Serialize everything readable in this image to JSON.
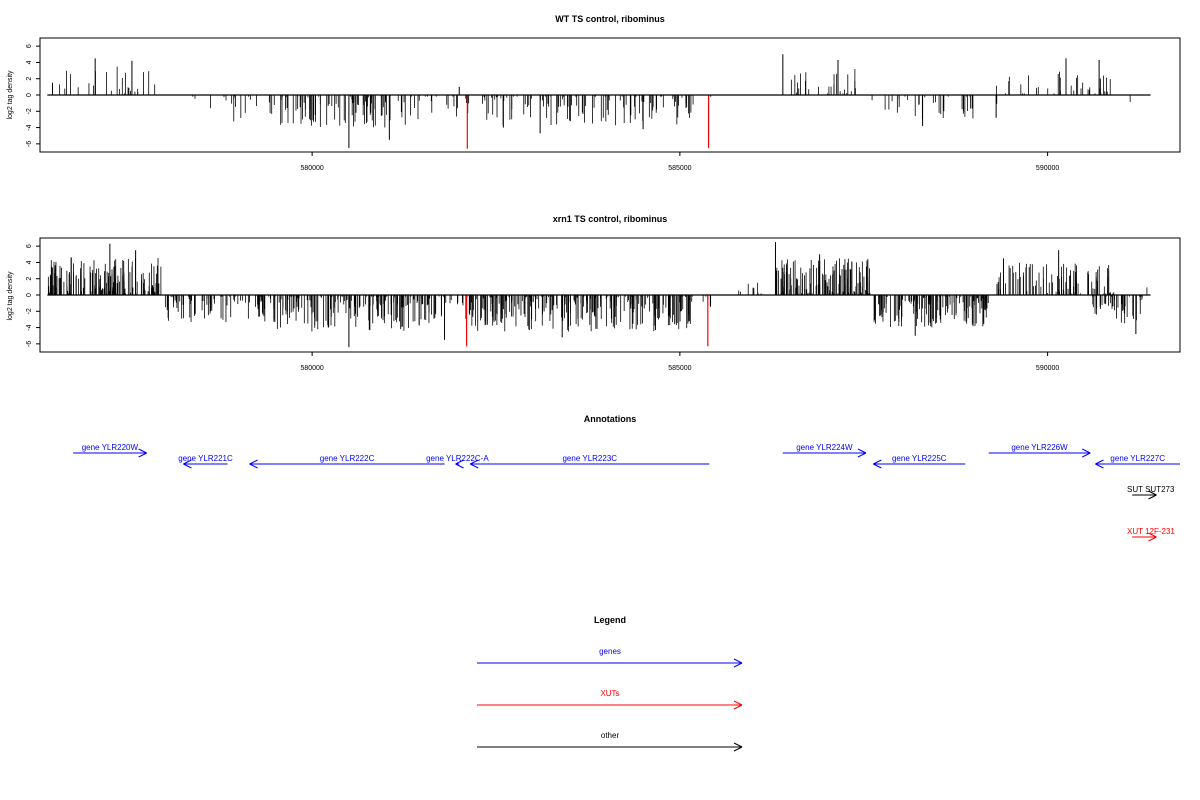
{
  "colors": {
    "gene": "#0000ff",
    "xut": "#ff0000",
    "other": "#000000",
    "bar": "#000000",
    "highlight": "#ff0000"
  },
  "chart_data": [
    {
      "type": "bar",
      "title": "WT TS control, ribominus",
      "ylabel": "log2 tag density",
      "xlim": [
        576300,
        591800
      ],
      "ylim": [
        -7,
        7
      ],
      "yticks": [
        -6,
        -4,
        -2,
        0,
        2,
        4,
        6
      ],
      "xticks": [
        {
          "value": 580000,
          "label": "580000"
        },
        {
          "value": 585000,
          "label": "585000"
        },
        {
          "value": 590000,
          "label": "590000"
        }
      ],
      "segments": [
        {
          "start": 576400,
          "end": 577900,
          "sign": 1,
          "max": 3.5,
          "density": 0.1
        },
        {
          "start": 578200,
          "end": 578500,
          "sign": -1,
          "max": 1.5,
          "density": 0.05
        },
        {
          "start": 578600,
          "end": 579400,
          "sign": -1,
          "max": 3.5,
          "density": 0.1
        },
        {
          "start": 579400,
          "end": 581400,
          "sign": -1,
          "max": 4.0,
          "density": 0.28
        },
        {
          "start": 581400,
          "end": 582300,
          "sign": -1,
          "max": 3.0,
          "density": 0.12
        },
        {
          "start": 582300,
          "end": 585200,
          "sign": -1,
          "max": 3.8,
          "density": 0.24
        },
        {
          "start": 585300,
          "end": 585500,
          "sign": -1,
          "max": 2.0,
          "density": 0.04
        },
        {
          "start": 586400,
          "end": 587500,
          "sign": 1,
          "max": 3.2,
          "density": 0.14
        },
        {
          "start": 587600,
          "end": 589000,
          "sign": -1,
          "max": 3.0,
          "density": 0.14
        },
        {
          "start": 589300,
          "end": 589400,
          "sign": -1,
          "max": 2.5,
          "density": 0.02
        },
        {
          "start": 589300,
          "end": 590900,
          "sign": 1,
          "max": 3.0,
          "density": 0.14
        },
        {
          "start": 591100,
          "end": 591300,
          "sign": -1,
          "max": 2.0,
          "density": 0.03
        }
      ],
      "peaks": [
        {
          "x": 576470,
          "y": 1.5
        },
        {
          "x": 577050,
          "y": 4.5
        },
        {
          "x": 577550,
          "y": 4.2
        },
        {
          "x": 580500,
          "y": -6.5
        },
        {
          "x": 581050,
          "y": -5.5
        },
        {
          "x": 582000,
          "y": 1.0
        },
        {
          "x": 582600,
          "y": -4.0
        },
        {
          "x": 583100,
          "y": -4.7
        },
        {
          "x": 584500,
          "y": -4.2
        },
        {
          "x": 586400,
          "y": 5.0
        },
        {
          "x": 587150,
          "y": 4.3
        },
        {
          "x": 588300,
          "y": -3.8
        },
        {
          "x": 589300,
          "y": -2.8
        },
        {
          "x": 590250,
          "y": 4.5
        },
        {
          "x": 590700,
          "y": 4.3
        }
      ],
      "highlights": [
        {
          "x": 582110,
          "y": -6.6
        },
        {
          "x": 585390,
          "y": -6.5
        }
      ]
    },
    {
      "type": "bar",
      "title": "xrn1 TS control, ribominus",
      "ylabel": "log2 tag density",
      "xlim": [
        576300,
        591800
      ],
      "ylim": [
        -7,
        7
      ],
      "yticks": [
        -6,
        -4,
        -2,
        0,
        2,
        4,
        6
      ],
      "xticks": [
        {
          "value": 580000,
          "label": "580000"
        },
        {
          "value": 585000,
          "label": "585000"
        },
        {
          "value": 590000,
          "label": "590000"
        }
      ],
      "segments": [
        {
          "start": 576400,
          "end": 577950,
          "sign": 1,
          "max": 4.8,
          "density": 0.6
        },
        {
          "start": 578000,
          "end": 579400,
          "sign": -1,
          "max": 3.5,
          "density": 0.35
        },
        {
          "start": 579400,
          "end": 581600,
          "sign": -1,
          "max": 4.5,
          "density": 0.5
        },
        {
          "start": 581600,
          "end": 582100,
          "sign": -1,
          "max": 3.5,
          "density": 0.25
        },
        {
          "start": 582100,
          "end": 585200,
          "sign": -1,
          "max": 4.5,
          "density": 0.5
        },
        {
          "start": 585300,
          "end": 585600,
          "sign": -1,
          "max": 2.0,
          "density": 0.1
        },
        {
          "start": 585800,
          "end": 586300,
          "sign": 1,
          "max": 1.5,
          "density": 0.1
        },
        {
          "start": 586300,
          "end": 587600,
          "sign": 1,
          "max": 4.5,
          "density": 0.6
        },
        {
          "start": 587600,
          "end": 589200,
          "sign": -1,
          "max": 4.0,
          "density": 0.55
        },
        {
          "start": 589300,
          "end": 590900,
          "sign": 1,
          "max": 4.0,
          "density": 0.35
        },
        {
          "start": 590600,
          "end": 591300,
          "sign": -1,
          "max": 3.5,
          "density": 0.4
        },
        {
          "start": 591300,
          "end": 591400,
          "sign": 1,
          "max": 2.5,
          "density": 0.05
        }
      ],
      "peaks": [
        {
          "x": 577250,
          "y": 6.3
        },
        {
          "x": 577600,
          "y": 5.5
        },
        {
          "x": 580500,
          "y": -6.4
        },
        {
          "x": 581800,
          "y": -5.5
        },
        {
          "x": 583400,
          "y": -5.2
        },
        {
          "x": 586300,
          "y": 6.5
        },
        {
          "x": 586900,
          "y": 5.0
        },
        {
          "x": 588200,
          "y": -5.0
        },
        {
          "x": 589400,
          "y": 4.5
        },
        {
          "x": 590150,
          "y": 5.5
        },
        {
          "x": 591200,
          "y": -4.8
        }
      ],
      "highlights": [
        {
          "x": 582100,
          "y": -6.3
        },
        {
          "x": 585380,
          "y": -6.3
        }
      ]
    }
  ],
  "annotations": {
    "title": "Annotations",
    "features": [
      {
        "label": "gene YLR220W",
        "kind": "gene",
        "start": 576750,
        "end": 577750,
        "strand": "+",
        "row": 0
      },
      {
        "label": "gene YLR221C",
        "kind": "gene",
        "start": 578250,
        "end": 578850,
        "strand": "-",
        "row": 1
      },
      {
        "label": "gene YLR222C",
        "kind": "gene",
        "start": 579150,
        "end": 581800,
        "strand": "-",
        "row": 1
      },
      {
        "label": "gene YLR222C-A",
        "kind": "gene",
        "start": 581950,
        "end": 582000,
        "strand": "-",
        "row": 1
      },
      {
        "label": "gene YLR223C",
        "kind": "gene",
        "start": 582150,
        "end": 585400,
        "strand": "-",
        "row": 1
      },
      {
        "label": "gene YLR224W",
        "kind": "gene",
        "start": 586400,
        "end": 587530,
        "strand": "+",
        "row": 0
      },
      {
        "label": "gene YLR225C",
        "kind": "gene",
        "start": 587630,
        "end": 588880,
        "strand": "-",
        "row": 1
      },
      {
        "label": "gene YLR226W",
        "kind": "gene",
        "start": 589200,
        "end": 590580,
        "strand": "+",
        "row": 0
      },
      {
        "label": "gene YLR227C",
        "kind": "gene",
        "start": 590650,
        "end": 591800,
        "strand": "-",
        "row": 1
      },
      {
        "label": "SUT SUT273",
        "kind": "other",
        "start": 591150,
        "end": 591480,
        "strand": "+",
        "row": 2
      },
      {
        "label": "XUT 12F-231",
        "kind": "xut",
        "start": 591150,
        "end": 591480,
        "strand": "+",
        "row": 3
      }
    ]
  },
  "legend": {
    "title": "Legend",
    "items": [
      {
        "label": "genes",
        "kind": "gene"
      },
      {
        "label": "XUTs",
        "kind": "xut"
      },
      {
        "label": "other",
        "kind": "other"
      }
    ]
  }
}
